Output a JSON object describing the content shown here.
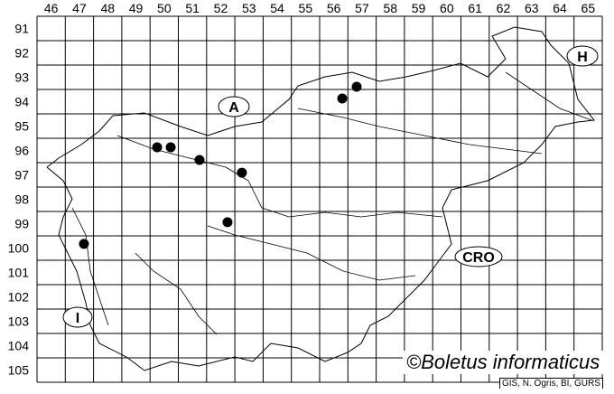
{
  "map": {
    "grid_columns": [
      "46",
      "47",
      "48",
      "49",
      "50",
      "51",
      "52",
      "53",
      "54",
      "55",
      "56",
      "57",
      "58",
      "59",
      "60",
      "61",
      "62",
      "63",
      "64",
      "65"
    ],
    "grid_rows": [
      "91",
      "92",
      "93",
      "94",
      "95",
      "96",
      "97",
      "98",
      "99",
      "100",
      "101",
      "102",
      "103",
      "104",
      "105"
    ],
    "country_labels": [
      {
        "id": "austria",
        "text": "A"
      },
      {
        "id": "hungary",
        "text": "H"
      },
      {
        "id": "croatia",
        "text": "CRO"
      },
      {
        "id": "italy",
        "text": "I"
      }
    ],
    "records": [
      {
        "col": 50.25,
        "row": 96.37
      },
      {
        "col": 50.73,
        "row": 96.37
      },
      {
        "col": 51.75,
        "row": 96.89
      },
      {
        "col": 53.25,
        "row": 97.41
      },
      {
        "col": 52.74,
        "row": 99.44
      },
      {
        "col": 47.66,
        "row": 100.33
      },
      {
        "col": 56.8,
        "row": 94.37
      },
      {
        "col": 57.31,
        "row": 93.89
      }
    ],
    "record_color": "#000000",
    "credit": "©Boletus informaticus",
    "source": "GIS, N. Ogris, BI, GURS"
  }
}
